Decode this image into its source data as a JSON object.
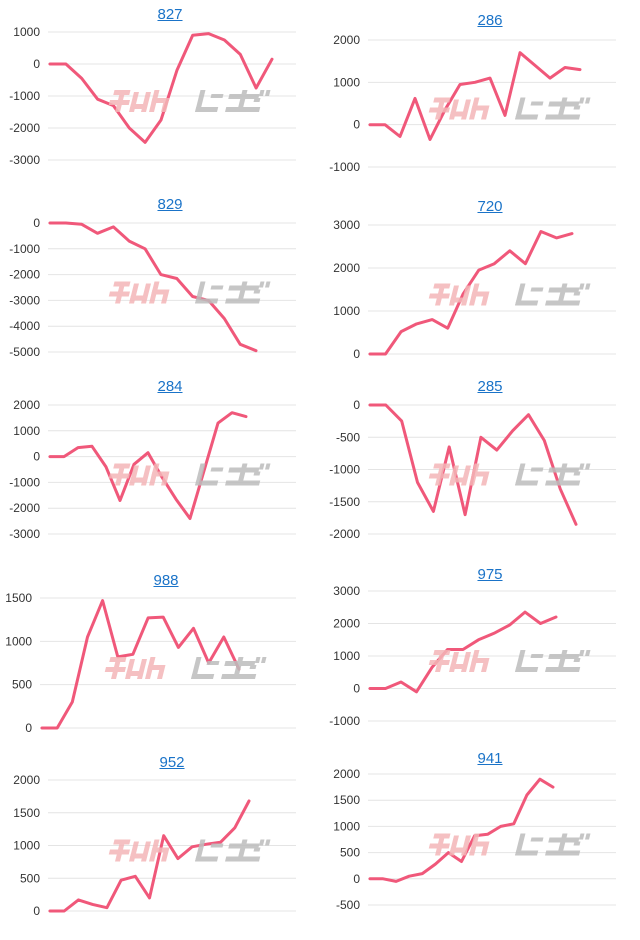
{
  "colors": {
    "series": "#f0587a",
    "grid": "#e4e4e4",
    "link": "#1a73c8",
    "watermark_red": "#f4b6b8",
    "watermark_gray": "#bdbdbd"
  },
  "watermark_icon": "minrepo-logo-watermark",
  "chart_data": [
    {
      "type": "line",
      "title": "827",
      "y_ticks": [
        1000,
        0,
        -1000,
        -2000,
        -3000
      ],
      "ylim": [
        -3000,
        1000
      ],
      "grid": true,
      "values": [
        0,
        0,
        -450,
        -1100,
        -1300,
        -2000,
        -2450,
        -1750,
        -200,
        900,
        950,
        750,
        300,
        -750,
        150
      ]
    },
    {
      "type": "line",
      "title": "286",
      "y_ticks": [
        2000,
        1000,
        0,
        -1000
      ],
      "ylim": [
        -1000,
        2000
      ],
      "grid": true,
      "values": [
        0,
        0,
        -280,
        620,
        -350,
        350,
        950,
        1000,
        1100,
        220,
        1700,
        1400,
        1100,
        1350,
        1300
      ]
    },
    {
      "type": "line",
      "title": "829",
      "y_ticks": [
        0,
        -1000,
        -2000,
        -3000,
        -4000,
        -5000
      ],
      "ylim": [
        -5000,
        0
      ],
      "grid": true,
      "values": [
        0,
        0,
        -50,
        -400,
        -150,
        -700,
        -1000,
        -2000,
        -2150,
        -2850,
        -3000,
        -3700,
        -4700,
        -4950
      ]
    },
    {
      "type": "line",
      "title": "720",
      "y_ticks": [
        3000,
        2000,
        1000,
        0
      ],
      "ylim": [
        0,
        3000
      ],
      "grid": true,
      "values": [
        0,
        0,
        520,
        700,
        800,
        600,
        1400,
        1950,
        2100,
        2400,
        2100,
        2850,
        2700,
        2800
      ]
    },
    {
      "type": "line",
      "title": "284",
      "y_ticks": [
        2000,
        1000,
        0,
        -1000,
        -2000,
        -3000
      ],
      "ylim": [
        -3000,
        2000
      ],
      "grid": true,
      "values": [
        0,
        0,
        350,
        400,
        -400,
        -1700,
        -300,
        150,
        -800,
        -1650,
        -2400,
        -550,
        1300,
        1700,
        1550
      ]
    },
    {
      "type": "line",
      "title": "285",
      "y_ticks": [
        0,
        -500,
        -1000,
        -1500,
        -2000
      ],
      "ylim": [
        -2000,
        0
      ],
      "grid": true,
      "values": [
        0,
        0,
        -250,
        -1200,
        -1650,
        -650,
        -1700,
        -500,
        -700,
        -400,
        -150,
        -550,
        -1300,
        -1850
      ]
    },
    {
      "type": "line",
      "title": "988",
      "y_ticks": [
        1500,
        1000,
        500,
        0
      ],
      "ylim": [
        0,
        1500
      ],
      "grid": true,
      "values": [
        0,
        0,
        300,
        1050,
        1470,
        820,
        850,
        1270,
        1280,
        930,
        1150,
        750,
        1050,
        680
      ]
    },
    {
      "type": "line",
      "title": "975",
      "y_ticks": [
        3000,
        2000,
        1000,
        0,
        -1000
      ],
      "ylim": [
        -1000,
        3000
      ],
      "grid": true,
      "values": [
        0,
        0,
        200,
        -100,
        650,
        1200,
        1200,
        1500,
        1700,
        1950,
        2350,
        2000,
        2200
      ]
    },
    {
      "type": "line",
      "title": "952",
      "y_ticks": [
        2000,
        1500,
        1000,
        500,
        0
      ],
      "ylim": [
        0,
        2000
      ],
      "grid": true,
      "values": [
        0,
        0,
        170,
        100,
        50,
        470,
        530,
        200,
        1150,
        800,
        980,
        1020,
        1050,
        1270,
        1680
      ]
    },
    {
      "type": "line",
      "title": "941",
      "y_ticks": [
        2000,
        1500,
        1000,
        500,
        0,
        -500
      ],
      "ylim": [
        -500,
        2000
      ],
      "grid": true,
      "values": [
        0,
        0,
        -50,
        50,
        100,
        280,
        500,
        330,
        820,
        850,
        1000,
        1050,
        1600,
        1900,
        1750
      ]
    }
  ]
}
